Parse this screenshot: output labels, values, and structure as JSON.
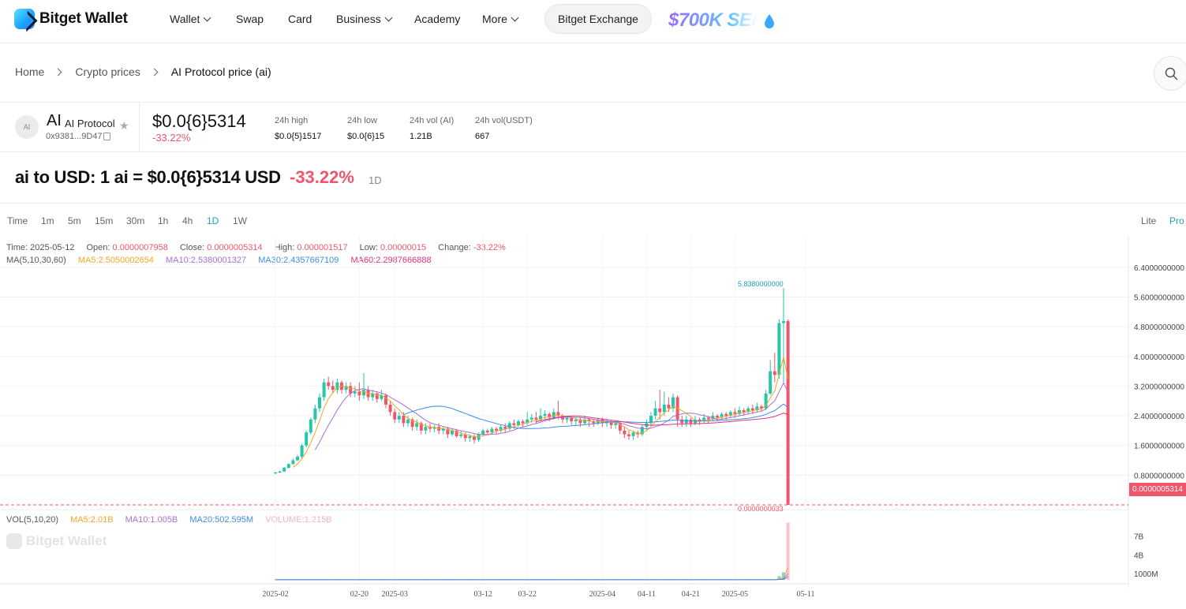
{
  "nav": {
    "brand": "Bitget Wallet",
    "items": [
      {
        "label": "Wallet",
        "dropdown": true
      },
      {
        "label": "Swap",
        "dropdown": false
      },
      {
        "label": "Card",
        "dropdown": false
      },
      {
        "label": "Business",
        "dropdown": true
      },
      {
        "label": "Academy",
        "dropdown": false
      },
      {
        "label": "More",
        "dropdown": true
      }
    ],
    "exchange_button": "Bitget Exchange",
    "promo": "$700K SEI"
  },
  "breadcrumb": [
    "Home",
    "Crypto prices",
    "AI Protocol price (ai)"
  ],
  "token": {
    "avatar": "AI",
    "symbol": "AI",
    "name": "AI Protocol",
    "address": "0x9381...9D47",
    "price": "$0.0{6}5314",
    "change": "-33.22%",
    "stats": [
      {
        "label": "24h high",
        "value": "$0.0{5}1517"
      },
      {
        "label": "24h low",
        "value": "$0.0{6}15"
      },
      {
        "label": "24h vol (AI)",
        "value": "1.21B"
      },
      {
        "label": "24h vol(USDT)",
        "value": "667"
      }
    ]
  },
  "headline": {
    "text": "ai to USD: 1 ai = $0.0{6}5314 USD",
    "change": "-33.22%",
    "interval": "1D"
  },
  "intervals": [
    "Time",
    "1m",
    "5m",
    "15m",
    "30m",
    "1h",
    "4h",
    "1D",
    "1W"
  ],
  "active_interval": "1D",
  "modes": [
    "Lite",
    "Pro"
  ],
  "active_mode": "Pro",
  "ohlc_legend": {
    "time_label": "Time:",
    "time": "2025-05-12",
    "open_label": "Open:",
    "open": "0.0000007958",
    "close_label": "Close:",
    "close": "0.0000005314",
    "high_label": "High:",
    "high": "0.000001517",
    "low_label": "Low:",
    "low": "0.00000015",
    "change_label": "Change:",
    "change": "-33.22%"
  },
  "ma_legend": {
    "title": "MA(5,10,30,60)",
    "items": [
      {
        "label": "MA5:",
        "value": "2.5050002654",
        "color": "#f5a623"
      },
      {
        "label": "MA10:",
        "value": "2.5380001327",
        "color": "#a66fd6"
      },
      {
        "label": "MA30:",
        "value": "2.4357667109",
        "color": "#3d8fe0"
      },
      {
        "label": "MA60:",
        "value": "2.2987666888",
        "color": "#e0317f"
      }
    ]
  },
  "vol_legend": {
    "title": "VOL(5,10,20)",
    "items": [
      {
        "label": "MA5:",
        "value": "2.01B",
        "color": "#f5a623"
      },
      {
        "label": "MA10:",
        "value": "1.005B",
        "color": "#a66fd6"
      },
      {
        "label": "MA20:",
        "value": "502.595M",
        "color": "#3d8fe0"
      },
      {
        "label": "VOLUME:",
        "value": "1.215B",
        "color": "#f7b3bc"
      }
    ]
  },
  "watermark": "Bitget Wallet",
  "colors": {
    "up": "#26c6a9",
    "down": "#f0566b",
    "accent": "#1aa3b8"
  },
  "chart_data": {
    "type": "candlestick",
    "price_axis_ticks": [
      "6.4000000000",
      "5.6000000000",
      "4.8000000000",
      "4.0000000000",
      "3.2000000000",
      "2.4000000000",
      "1.6000000000",
      "0.8000000000"
    ],
    "price_axis_values": [
      6.4,
      5.6,
      4.8,
      4.0,
      3.2,
      2.4,
      1.6,
      0.8
    ],
    "ylim": [
      0,
      6.8
    ],
    "volume_axis_ticks": [
      "7B",
      "4B",
      "1000M"
    ],
    "volume_axis_values": [
      7,
      4,
      1
    ],
    "volume_ylim": [
      0,
      9.5
    ],
    "x_ticks": [
      "2025-02",
      "02-20",
      "2025-03",
      "03-12",
      "03-22",
      "2025-04",
      "04-11",
      "04-21",
      "2025-05",
      "05-11"
    ],
    "x_tick_index": [
      0,
      19,
      27,
      47,
      57,
      74,
      84,
      94,
      104,
      120
    ],
    "max_label": "5.8380000000",
    "min_label": "0.0000000033",
    "last_price_label": "0.0000005314",
    "last_price": 0.0,
    "candles": [
      [
        0.85,
        0.87,
        0.83,
        0.89
      ],
      [
        0.87,
        0.9,
        0.86,
        0.92
      ],
      [
        0.9,
        1.0,
        0.89,
        1.02
      ],
      [
        1.0,
        1.1,
        0.98,
        1.12
      ],
      [
        1.1,
        1.2,
        1.08,
        1.25
      ],
      [
        1.2,
        1.3,
        1.18,
        1.35
      ],
      [
        1.3,
        1.6,
        1.25,
        1.65
      ],
      [
        1.6,
        1.95,
        1.55,
        2.0
      ],
      [
        1.95,
        2.3,
        1.9,
        2.35
      ],
      [
        2.3,
        2.6,
        2.2,
        2.7
      ],
      [
        2.6,
        2.9,
        2.5,
        3.0
      ],
      [
        2.9,
        3.3,
        2.8,
        3.4
      ],
      [
        3.3,
        3.2,
        3.1,
        3.45
      ],
      [
        3.2,
        3.1,
        3.0,
        3.35
      ],
      [
        3.1,
        3.3,
        3.0,
        3.4
      ],
      [
        3.3,
        3.1,
        3.0,
        3.35
      ],
      [
        3.1,
        3.2,
        3.0,
        3.3
      ],
      [
        3.2,
        3.0,
        2.9,
        3.3
      ],
      [
        3.0,
        3.05,
        2.9,
        3.2
      ],
      [
        3.05,
        2.95,
        2.8,
        3.3
      ],
      [
        2.95,
        3.1,
        2.85,
        3.55
      ],
      [
        3.1,
        2.9,
        2.8,
        3.2
      ],
      [
        2.9,
        3.0,
        2.8,
        3.1
      ],
      [
        3.0,
        2.85,
        2.75,
        3.05
      ],
      [
        2.85,
        2.95,
        2.8,
        3.1
      ],
      [
        2.95,
        2.7,
        2.6,
        3.0
      ],
      [
        2.7,
        2.5,
        2.4,
        2.8
      ],
      [
        2.5,
        2.3,
        2.2,
        2.6
      ],
      [
        2.3,
        2.4,
        2.2,
        2.5
      ],
      [
        2.4,
        2.2,
        2.1,
        2.5
      ],
      [
        2.2,
        2.3,
        2.1,
        2.4
      ],
      [
        2.3,
        2.1,
        2.0,
        2.35
      ],
      [
        2.1,
        2.2,
        2.0,
        2.3
      ],
      [
        2.2,
        2.0,
        1.9,
        2.25
      ],
      [
        2.0,
        2.1,
        1.9,
        2.2
      ],
      [
        2.1,
        2.05,
        1.95,
        2.2
      ],
      [
        2.05,
        2.1,
        1.95,
        2.15
      ],
      [
        2.1,
        2.0,
        1.9,
        2.2
      ],
      [
        2.0,
        2.05,
        1.9,
        2.1
      ],
      [
        2.05,
        1.9,
        1.8,
        2.1
      ],
      [
        1.9,
        2.0,
        1.85,
        2.05
      ],
      [
        2.0,
        1.85,
        1.8,
        2.05
      ],
      [
        1.85,
        1.9,
        1.8,
        2.0
      ],
      [
        1.9,
        1.8,
        1.7,
        1.95
      ],
      [
        1.8,
        1.85,
        1.7,
        1.9
      ],
      [
        1.85,
        1.75,
        1.65,
        1.9
      ],
      [
        1.75,
        1.9,
        1.7,
        1.95
      ],
      [
        1.9,
        2.0,
        1.85,
        2.05
      ],
      [
        2.0,
        1.95,
        1.9,
        2.05
      ],
      [
        1.95,
        2.05,
        1.9,
        2.1
      ],
      [
        2.05,
        2.0,
        1.9,
        2.1
      ],
      [
        2.0,
        2.1,
        1.95,
        2.15
      ],
      [
        2.1,
        2.05,
        1.95,
        2.2
      ],
      [
        2.05,
        2.2,
        2.0,
        2.25
      ],
      [
        2.2,
        2.15,
        2.05,
        2.3
      ],
      [
        2.15,
        2.25,
        2.1,
        2.3
      ],
      [
        2.25,
        2.2,
        2.1,
        2.3
      ],
      [
        2.2,
        2.3,
        2.15,
        2.5
      ],
      [
        2.3,
        2.35,
        2.2,
        2.45
      ],
      [
        2.35,
        2.3,
        2.2,
        2.5
      ],
      [
        2.3,
        2.4,
        2.25,
        2.6
      ],
      [
        2.4,
        2.45,
        2.3,
        2.55
      ],
      [
        2.45,
        2.35,
        2.25,
        2.5
      ],
      [
        2.35,
        2.5,
        2.3,
        2.6
      ],
      [
        2.5,
        2.4,
        2.3,
        2.8
      ],
      [
        2.4,
        2.3,
        2.2,
        2.45
      ],
      [
        2.3,
        2.35,
        2.2,
        2.4
      ],
      [
        2.35,
        2.25,
        2.15,
        2.4
      ],
      [
        2.25,
        2.3,
        2.15,
        2.35
      ],
      [
        2.3,
        2.2,
        2.1,
        2.35
      ],
      [
        2.2,
        2.3,
        2.15,
        2.4
      ],
      [
        2.3,
        2.25,
        2.1,
        2.35
      ],
      [
        2.25,
        2.2,
        2.1,
        2.3
      ],
      [
        2.2,
        2.3,
        2.15,
        2.35
      ],
      [
        2.3,
        2.2,
        2.1,
        2.35
      ],
      [
        2.2,
        2.25,
        2.1,
        2.3
      ],
      [
        2.25,
        2.15,
        2.05,
        2.3
      ],
      [
        2.15,
        2.2,
        2.05,
        2.25
      ],
      [
        2.2,
        2.0,
        1.9,
        2.25
      ],
      [
        2.0,
        1.9,
        1.8,
        2.1
      ],
      [
        1.9,
        1.85,
        1.75,
        2.0
      ],
      [
        1.85,
        1.95,
        1.75,
        2.0
      ],
      [
        1.95,
        1.9,
        1.8,
        2.0
      ],
      [
        1.9,
        2.1,
        1.85,
        2.15
      ],
      [
        2.1,
        2.2,
        2.0,
        2.3
      ],
      [
        2.2,
        2.4,
        2.1,
        2.5
      ],
      [
        2.4,
        2.6,
        2.3,
        2.8
      ],
      [
        2.6,
        2.5,
        2.3,
        3.1
      ],
      [
        2.5,
        2.7,
        2.4,
        3.05
      ],
      [
        2.7,
        2.6,
        2.5,
        2.9
      ],
      [
        2.6,
        2.9,
        2.5,
        3.0
      ],
      [
        2.9,
        2.3,
        2.1,
        2.95
      ],
      [
        2.3,
        2.2,
        2.1,
        2.4
      ],
      [
        2.2,
        2.3,
        2.1,
        2.4
      ],
      [
        2.3,
        2.2,
        2.1,
        2.35
      ],
      [
        2.2,
        2.3,
        2.15,
        2.4
      ],
      [
        2.3,
        2.25,
        2.15,
        2.35
      ],
      [
        2.25,
        2.35,
        2.2,
        2.45
      ],
      [
        2.35,
        2.3,
        2.2,
        2.4
      ],
      [
        2.3,
        2.4,
        2.25,
        2.5
      ],
      [
        2.4,
        2.35,
        2.25,
        2.45
      ],
      [
        2.35,
        2.45,
        2.3,
        2.5
      ],
      [
        2.45,
        2.4,
        2.3,
        2.5
      ],
      [
        2.4,
        2.5,
        2.35,
        2.55
      ],
      [
        2.5,
        2.45,
        2.35,
        2.6
      ],
      [
        2.45,
        2.55,
        2.4,
        2.65
      ],
      [
        2.55,
        2.5,
        2.4,
        2.6
      ],
      [
        2.5,
        2.6,
        2.45,
        2.65
      ],
      [
        2.6,
        2.55,
        2.45,
        2.7
      ],
      [
        2.55,
        2.65,
        2.5,
        2.75
      ],
      [
        2.65,
        2.6,
        2.5,
        2.7
      ],
      [
        2.6,
        3.0,
        2.55,
        3.1
      ],
      [
        3.0,
        3.6,
        2.95,
        3.9
      ],
      [
        3.6,
        3.5,
        3.3,
        4.1
      ],
      [
        3.5,
        4.9,
        3.4,
        5.0
      ],
      [
        4.9,
        4.95,
        3.3,
        5.84
      ],
      [
        4.95,
        0.0,
        0.0,
        5.0
      ]
    ]
  }
}
